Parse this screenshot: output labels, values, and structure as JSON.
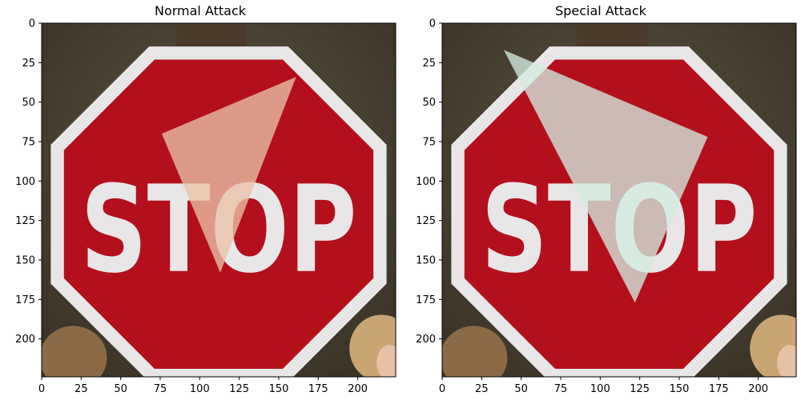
{
  "panels": [
    {
      "title": "Normal Attack",
      "image_subject": "stop-sign",
      "sign_text": "STOP",
      "overlay_color": "#e9c2a6",
      "overlay_triangle": [
        [
          76,
          70
        ],
        [
          161,
          34
        ],
        [
          113,
          158
        ]
      ],
      "x_ticks": [
        "0",
        "25",
        "50",
        "75",
        "100",
        "125",
        "150",
        "175",
        "200"
      ],
      "y_ticks": [
        "0",
        "25",
        "50",
        "75",
        "100",
        "125",
        "150",
        "175",
        "200"
      ]
    },
    {
      "title": "Special Attack",
      "image_subject": "stop-sign",
      "sign_text": "STOP",
      "overlay_color": "#d2ecdf",
      "overlay_triangle": [
        [
          39,
          17
        ],
        [
          168,
          72
        ],
        [
          122,
          177
        ]
      ],
      "x_ticks": [
        "0",
        "25",
        "50",
        "75",
        "100",
        "125",
        "150",
        "175",
        "200"
      ],
      "y_ticks": [
        "0",
        "25",
        "50",
        "75",
        "100",
        "125",
        "150",
        "175",
        "200"
      ]
    }
  ],
  "colors": {
    "sign_red": "#b3101c",
    "sign_border": "#e9e6e8",
    "background_dark": "#3a3326",
    "post": "#4a3a2c"
  },
  "image_extent": [
    0,
    224,
    224,
    0
  ]
}
